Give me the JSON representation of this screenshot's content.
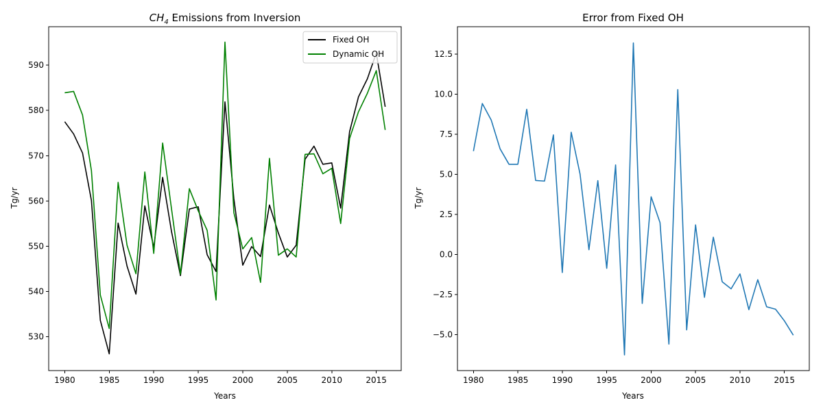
{
  "chart_data": [
    {
      "type": "line",
      "title_main": "CH",
      "title_sub": "4",
      "title_rest": " Emissions from Inversion",
      "xlabel": "Years",
      "ylabel": "Tg/yr",
      "xlim": [
        1978.2,
        2017.8
      ],
      "ylim": [
        522.5,
        598.5
      ],
      "xticks": [
        1980,
        1985,
        1990,
        1995,
        2000,
        2005,
        2010,
        2015
      ],
      "yticks": [
        530,
        540,
        550,
        560,
        570,
        580,
        590
      ],
      "legend_position": "upper-right",
      "x": [
        1980,
        1981,
        1982,
        1983,
        1984,
        1985,
        1986,
        1987,
        1988,
        1989,
        1990,
        1991,
        1992,
        1993,
        1994,
        1995,
        1996,
        1997,
        1998,
        1999,
        2000,
        2001,
        2002,
        2003,
        2004,
        2005,
        2006,
        2007,
        2008,
        2009,
        2010,
        2011,
        2012,
        2013,
        2014,
        2015,
        2016
      ],
      "series": [
        {
          "name": "Fixed OH",
          "color": "#000000",
          "values": [
            577.5,
            574.8,
            570.6,
            560.1,
            533.6,
            526.2,
            555.1,
            545.6,
            539.4,
            558.9,
            549.7,
            565.2,
            553.2,
            543.5,
            558.2,
            558.7,
            548.1,
            544.4,
            581.9,
            560.5,
            545.8,
            549.9,
            547.7,
            559.1,
            552.9,
            547.6,
            550.2,
            569.2,
            572.1,
            568.1,
            568.4,
            558.4,
            575.3,
            583.0,
            587.0,
            592.7,
            580.8
          ]
        },
        {
          "name": "Dynamic OH",
          "color": "#008000",
          "values": [
            583.9,
            584.2,
            579.0,
            566.7,
            539.2,
            531.8,
            564.1,
            550.2,
            543.9,
            566.4,
            548.4,
            572.8,
            558.2,
            543.8,
            562.7,
            557.8,
            553.5,
            538.1,
            595.1,
            557.4,
            549.4,
            551.9,
            542.0,
            569.4,
            548.0,
            549.4,
            547.6,
            570.3,
            570.4,
            566.0,
            567.2,
            555.0,
            573.8,
            579.7,
            583.8,
            588.8,
            575.7
          ]
        }
      ]
    },
    {
      "type": "line",
      "title": "Error from Fixed OH",
      "xlabel": "Years",
      "ylabel": "Tg/yr",
      "xlim": [
        1978.2,
        2017.8
      ],
      "ylim": [
        -7.25,
        14.2
      ],
      "xticks": [
        1980,
        1985,
        1990,
        1995,
        2000,
        2005,
        2010,
        2015
      ],
      "yticks": [
        -5.0,
        -2.5,
        0.0,
        2.5,
        5.0,
        7.5,
        10.0,
        12.5
      ],
      "ytick_labels": [
        "−5.0",
        "−2.5",
        "0.0",
        "2.5",
        "5.0",
        "7.5",
        "10.0",
        "12.5"
      ],
      "x": [
        1980,
        1981,
        1982,
        1983,
        1984,
        1985,
        1986,
        1987,
        1988,
        1989,
        1990,
        1991,
        1992,
        1993,
        1994,
        1995,
        1996,
        1997,
        1998,
        1999,
        2000,
        2001,
        2002,
        2003,
        2004,
        2005,
        2006,
        2007,
        2008,
        2009,
        2010,
        2011,
        2012,
        2013,
        2014,
        2015,
        2016
      ],
      "series": [
        {
          "color": "#1f77b4",
          "values": [
            6.44,
            9.41,
            8.38,
            6.58,
            5.62,
            5.62,
            9.05,
            4.61,
            4.57,
            7.45,
            -1.13,
            7.62,
            5.01,
            0.29,
            4.6,
            -0.87,
            5.58,
            -6.27,
            13.19,
            -3.06,
            3.59,
            1.98,
            -5.6,
            10.28,
            -4.71,
            1.84,
            -2.68,
            1.07,
            -1.71,
            -2.15,
            -1.22,
            -3.45,
            -1.58,
            -3.27,
            -3.42,
            -4.15,
            -5.04
          ]
        }
      ]
    }
  ]
}
